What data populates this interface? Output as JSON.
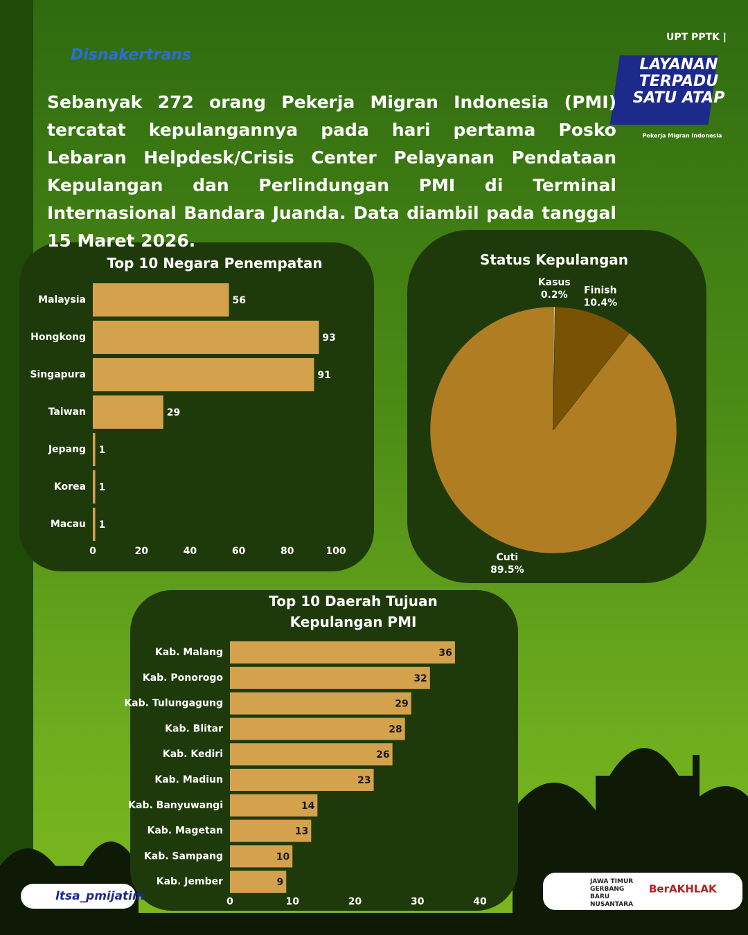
{
  "header": {
    "logo": "Disnakertrans",
    "unit": "UPT PPTK |",
    "badge": "LAYANAN TERPADU SATU ATAP",
    "badge_sub": "Pekerja Migran Indonesia",
    "text": "Sebanyak 272 orang Pekerja Migran Indonesia (PMI) tercatat kepulangannya pada hari pertama Posko Lebaran Helpdesk/Crisis Center Pelayanan Pendataan Kepulangan dan Perlindungan PMI di Terminal Internasional Bandara Juanda. Data diambil pada tanggal 15 Maret 2026."
  },
  "footer": {
    "handle": "ltsa_pmijatim",
    "motto": "JAWA TIMUR GERBANG BARU NUSANTARA",
    "brand": "BerAKHLAK"
  },
  "chart_data": [
    {
      "type": "hbar",
      "title": "Top 10 Negara Penempatan",
      "categories": [
        "Malaysia",
        "Hongkong",
        "Singapura",
        "Taiwan",
        "Jepang",
        "Korea",
        "Macau"
      ],
      "values": [
        56,
        93,
        91,
        29,
        1,
        1,
        1
      ],
      "color": "#d4a24c",
      "xlim": [
        0,
        100
      ],
      "xticks": [
        0,
        20,
        40,
        60,
        80,
        100
      ],
      "labels_inside": false
    },
    {
      "type": "pie",
      "title": "Status Kepulangan",
      "categories": [
        "Kasus",
        "Finish",
        "Cuti"
      ],
      "values": [
        0.2,
        10.4,
        89.5
      ],
      "value_labels": [
        "0.2%",
        "10.4%",
        "89.5%"
      ],
      "colors": [
        "#f2e3a6",
        "#7a5204",
        "#b07d22"
      ]
    },
    {
      "type": "hbar",
      "title": "Top 10 Daerah Tujuan Kepulangan PMI",
      "categories": [
        "Kab. Malang",
        "Kab. Ponorogo",
        "Kab. Tulungagung",
        "Kab. Blitar",
        "Kab. Kediri",
        "Kab. Madiun",
        "Kab. Banyuwangi",
        "Kab. Magetan",
        "Kab. Sampang",
        "Kab. Jember"
      ],
      "values": [
        36,
        32,
        29,
        28,
        26,
        23,
        14,
        13,
        10,
        9
      ],
      "color": "#d4a24c",
      "xlim": [
        0,
        40
      ],
      "xticks": [
        0,
        10,
        20,
        30,
        40
      ],
      "labels_inside": true
    }
  ]
}
